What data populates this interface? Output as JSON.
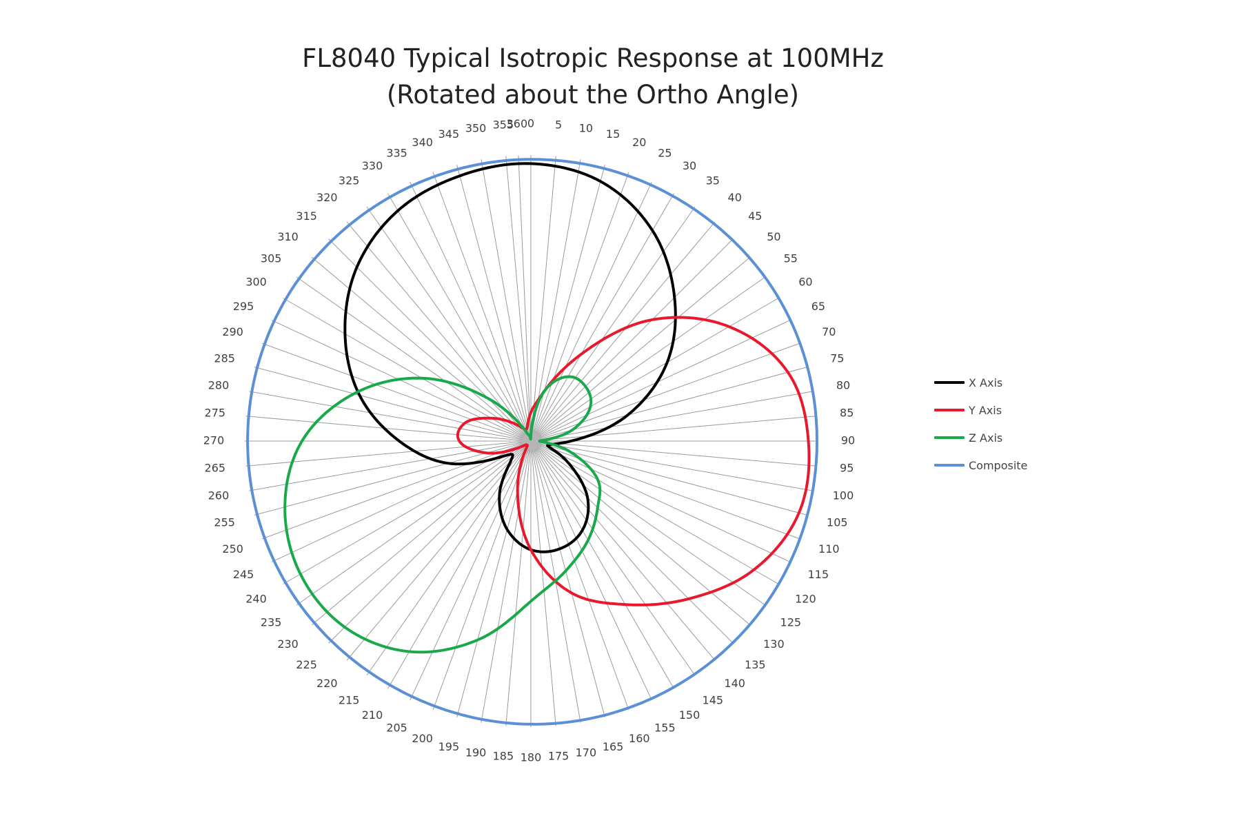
{
  "chart_data": {
    "type": "polar-line",
    "title_line1": "FL8040 Typical Isotropic Response at 100MHz",
    "title_line2": "(Rotated about the Ortho Angle)",
    "angle_ticks": [
      0,
      5,
      10,
      15,
      20,
      25,
      30,
      35,
      40,
      45,
      50,
      55,
      60,
      65,
      70,
      75,
      80,
      85,
      90,
      95,
      100,
      105,
      110,
      115,
      120,
      125,
      130,
      135,
      140,
      145,
      150,
      155,
      160,
      165,
      170,
      175,
      180,
      185,
      190,
      195,
      200,
      205,
      210,
      215,
      220,
      225,
      230,
      235,
      240,
      245,
      250,
      255,
      260,
      265,
      270,
      275,
      280,
      285,
      290,
      295,
      300,
      305,
      310,
      315,
      320,
      325,
      330,
      335,
      340,
      345,
      350,
      355,
      360
    ],
    "theta_unit": "degrees",
    "radius_range": [
      0,
      1
    ],
    "grid": "radial spokes",
    "legend_position": "right",
    "series": [
      {
        "name": "X Axis",
        "color": "#000000",
        "angles": [
          0,
          15,
          30,
          45,
          60,
          75,
          90,
          105,
          120,
          135,
          150,
          165,
          180,
          195,
          210,
          225,
          240,
          255,
          270,
          285,
          300,
          315,
          330,
          345
        ],
        "r": [
          0.97,
          0.94,
          0.85,
          0.71,
          0.55,
          0.35,
          0.14,
          0.06,
          0.15,
          0.28,
          0.36,
          0.39,
          0.38,
          0.32,
          0.22,
          0.1,
          0.1,
          0.3,
          0.46,
          0.62,
          0.75,
          0.86,
          0.93,
          0.96
        ]
      },
      {
        "name": "Y Axis",
        "color": "#e8192c",
        "angles": [
          0,
          15,
          30,
          45,
          60,
          75,
          90,
          105,
          120,
          135,
          150,
          165,
          180,
          195,
          210,
          225,
          240,
          255,
          270,
          285,
          300,
          315,
          330,
          345
        ],
        "r": [
          0.1,
          0.18,
          0.35,
          0.6,
          0.8,
          0.93,
          0.97,
          0.97,
          0.9,
          0.78,
          0.66,
          0.55,
          0.38,
          0.18,
          0.04,
          0.02,
          0.04,
          0.16,
          0.25,
          0.24,
          0.16,
          0.09,
          0.05,
          0.05
        ]
      },
      {
        "name": "Z Axis",
        "color": "#1aa94a",
        "angles": [
          0,
          15,
          30,
          45,
          60,
          75,
          90,
          105,
          120,
          135,
          150,
          165,
          180,
          195,
          210,
          225,
          240,
          255,
          270,
          285,
          300,
          315,
          330,
          345
        ],
        "r": [
          0.02,
          0.18,
          0.26,
          0.27,
          0.24,
          0.15,
          0.03,
          0.14,
          0.27,
          0.33,
          0.4,
          0.47,
          0.56,
          0.72,
          0.85,
          0.92,
          0.93,
          0.89,
          0.8,
          0.64,
          0.44,
          0.21,
          0.05,
          0.02
        ]
      },
      {
        "name": "Composite",
        "color": "#5b8fd6",
        "angles": [
          0,
          30,
          60,
          90,
          120,
          150,
          180,
          210,
          240,
          270,
          300,
          330
        ],
        "r": [
          0.985,
          0.99,
          1.0,
          1.0,
          1.0,
          0.995,
          0.99,
          0.985,
          0.99,
          0.99,
          0.99,
          0.985
        ]
      }
    ]
  }
}
